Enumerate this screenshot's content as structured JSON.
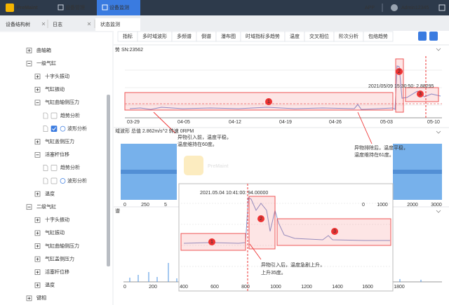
{
  "header": {
    "logo": "PreMaint",
    "nav": [
      "设备管理",
      "设备监测"
    ],
    "app": "APP",
    "user": "Admin12345"
  },
  "tabs": [
    "设备结构树",
    "日志",
    "状态监测"
  ],
  "tree": [
    {
      "label": "曲轴箱",
      "level": 0,
      "expanded": false
    },
    {
      "label": "一级气缸",
      "level": 0,
      "expanded": true
    },
    {
      "label": "十字头振动",
      "level": 1,
      "expanded": false
    },
    {
      "label": "气缸振动",
      "level": 1,
      "expanded": false
    },
    {
      "label": "气缸曲轴侧压力",
      "level": 1,
      "expanded": true
    },
    {
      "label": "趋势分析",
      "level": 2,
      "checked": false,
      "icon": false
    },
    {
      "label": "波形分析",
      "level": 2,
      "checked": true,
      "icon": true
    },
    {
      "label": "气缸盖侧压力",
      "level": 1,
      "expanded": false
    },
    {
      "label": "活塞杆位移",
      "level": 1,
      "expanded": true
    },
    {
      "label": "趋势分析",
      "level": 2,
      "checked": false,
      "icon": false
    },
    {
      "label": "波形分析",
      "level": 2,
      "checked": false,
      "icon": true
    },
    {
      "label": "温度",
      "level": 1,
      "expanded": false
    },
    {
      "label": "二级气缸",
      "level": 0,
      "expanded": true
    },
    {
      "label": "十字头振动",
      "level": 1,
      "expanded": false
    },
    {
      "label": "气缸振动",
      "level": 1,
      "expanded": false
    },
    {
      "label": "气缸曲轴侧压力",
      "level": 1,
      "expanded": false
    },
    {
      "label": "气缸盖侧压力",
      "level": 1,
      "expanded": false
    },
    {
      "label": "活塞杆位移",
      "level": 1,
      "expanded": false
    },
    {
      "label": "温度",
      "level": 1,
      "expanded": false
    },
    {
      "label": "键相",
      "level": 0,
      "expanded": false
    }
  ],
  "toolbar": [
    "指标",
    "多时域波形",
    "多频谱",
    "倒谱",
    "瀑布图",
    "时域指标多趋势",
    "温度",
    "交叉相位",
    "阶次分析",
    "包络趋势"
  ],
  "trend_panel": {
    "title": "势 SN:23562",
    "x_labels": [
      "03-29",
      "04-05",
      "04-12",
      "04-19",
      "04-26",
      "05-03",
      "05-10"
    ],
    "tooltip": "2021/05/09 15:30:50: 2.88295",
    "markers": [
      "1",
      "2",
      "3"
    ],
    "note_before": [
      "异物引入前，温度平稳，",
      "温度维持在60度。"
    ],
    "note_after": [
      "异物排除后，温度平稳，",
      "温度维持在61度。"
    ]
  },
  "wave_panel": {
    "title": "域波形 总值 2.862m/s^2 转速 0RPM",
    "x_labels": [
      "0",
      "250",
      "5",
      "0",
      "1000",
      "2000",
      "3000"
    ]
  },
  "spectrum_panel": {
    "title": "谱",
    "x_labels": [
      "0",
      "200",
      "400",
      "600",
      "800",
      "1000",
      "1200",
      "1400",
      "1600",
      "1800"
    ]
  },
  "zoom": {
    "tooltip": "2021.05.04 10:41:00: 94.00000",
    "markers": [
      "1",
      "2",
      "3"
    ],
    "note": [
      "异物引入后，温度急剧上升，",
      "上升35度。"
    ]
  },
  "watermark": "PreMaint"
}
